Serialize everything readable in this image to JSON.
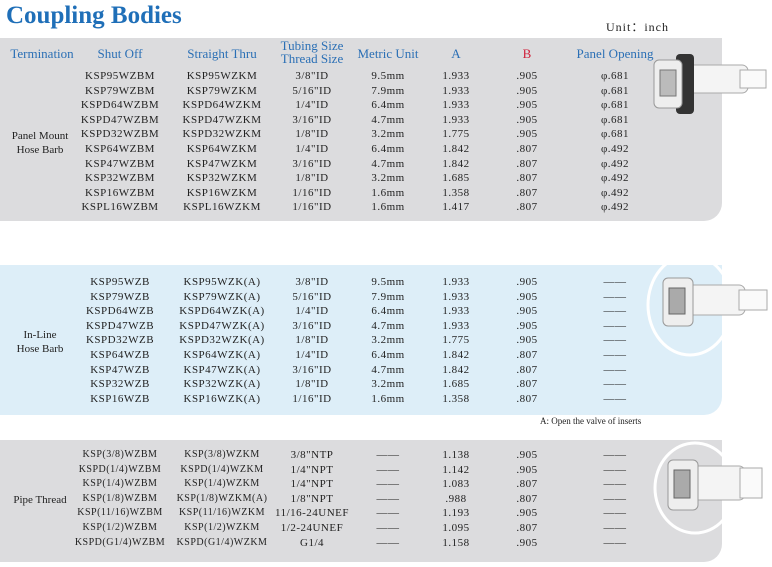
{
  "title": "Coupling Bodies",
  "unit": "Unit：inch",
  "headers": [
    "Termination",
    "Shut Off",
    "Straight Thru",
    [
      "Tubing Size",
      "Thread Size"
    ],
    "Metric Unit",
    "A",
    "B",
    "Panel Opening"
  ],
  "sections": [
    {
      "termination": [
        "Panel Mount",
        "Hose Barb"
      ],
      "rows": [
        [
          "KSP95WZBM",
          "KSP95WZKM",
          "3/8\"ID",
          "9.5mm",
          "1.933",
          ".905",
          "φ.681"
        ],
        [
          "KSP79WZBM",
          "KSP79WZKM",
          "5/16\"ID",
          "7.9mm",
          "1.933",
          ".905",
          "φ.681"
        ],
        [
          "KSPD64WZBM",
          "KSPD64WZKM",
          "1/4\"ID",
          "6.4mm",
          "1.933",
          ".905",
          "φ.681"
        ],
        [
          "KSPD47WZBM",
          "KSPD47WZKM",
          "3/16\"ID",
          "4.7mm",
          "1.933",
          ".905",
          "φ.681"
        ],
        [
          "KSPD32WZBM",
          "KSPD32WZKM",
          "1/8\"ID",
          "3.2mm",
          "1.775",
          ".905",
          "φ.681"
        ],
        [
          "KSP64WZBM",
          "KSP64WZKM",
          "1/4\"ID",
          "6.4mm",
          "1.842",
          ".807",
          "φ.492"
        ],
        [
          "KSP47WZBM",
          "KSP47WZKM",
          "3/16\"ID",
          "4.7mm",
          "1.842",
          ".807",
          "φ.492"
        ],
        [
          "KSP32WZBM",
          "KSP32WZKM",
          "1/8\"ID",
          "3.2mm",
          "1.685",
          ".807",
          "φ.492"
        ],
        [
          "KSP16WZBM",
          "KSP16WZKM",
          "1/16\"ID",
          "1.6mm",
          "1.358",
          ".807",
          "φ.492"
        ],
        [
          "KSPL16WZBM",
          "KSPL16WZKM",
          "1/16\"ID",
          "1.6mm",
          "1.417",
          ".807",
          "φ.492"
        ]
      ]
    },
    {
      "termination": [
        "In-Line",
        "Hose Barb"
      ],
      "rows": [
        [
          "KSP95WZB",
          "KSP95WZK(A)",
          "3/8\"ID",
          "9.5mm",
          "1.933",
          ".905",
          "——"
        ],
        [
          "KSP79WZB",
          "KSP79WZK(A)",
          "5/16\"ID",
          "7.9mm",
          "1.933",
          ".905",
          "——"
        ],
        [
          "KSPD64WZB",
          "KSPD64WZK(A)",
          "1/4\"ID",
          "6.4mm",
          "1.933",
          ".905",
          "——"
        ],
        [
          "KSPD47WZB",
          "KSPD47WZK(A)",
          "3/16\"ID",
          "4.7mm",
          "1.933",
          ".905",
          "——"
        ],
        [
          "KSPD32WZB",
          "KSPD32WZK(A)",
          "1/8\"ID",
          "3.2mm",
          "1.775",
          ".905",
          "——"
        ],
        [
          "KSP64WZB",
          "KSP64WZK(A)",
          "1/4\"ID",
          "6.4mm",
          "1.842",
          ".807",
          "——"
        ],
        [
          "KSP47WZB",
          "KSP47WZK(A)",
          "3/16\"ID",
          "4.7mm",
          "1.842",
          ".807",
          "——"
        ],
        [
          "KSP32WZB",
          "KSP32WZK(A)",
          "1/8\"ID",
          "3.2mm",
          "1.685",
          ".807",
          "——"
        ],
        [
          "KSP16WZB",
          "KSP16WZK(A)",
          "1/16\"ID",
          "1.6mm",
          "1.358",
          ".807",
          "——"
        ]
      ]
    },
    {
      "termination": [
        "Pipe Thread"
      ],
      "rows": [
        [
          "KSP(3/8)WZBM",
          "KSP(3/8)WZKM",
          "3/8\"NTP",
          "——",
          "1.138",
          ".905",
          "——"
        ],
        [
          "KSPD(1/4)WZBM",
          "KSPD(1/4)WZKM",
          "1/4\"NPT",
          "——",
          "1.142",
          ".905",
          "——"
        ],
        [
          "KSP(1/4)WZBM",
          "KSP(1/4)WZKM",
          "1/4\"NPT",
          "——",
          "1.083",
          ".807",
          "——"
        ],
        [
          "KSP(1/8)WZBM",
          "KSP(1/8)WZKM(A)",
          "1/8\"NPT",
          "——",
          ".988",
          ".807",
          "——"
        ],
        [
          "KSP(11/16)WZBM",
          "KSP(11/16)WZKM",
          "11/16-24UNEF",
          "——",
          "1.193",
          ".905",
          "——"
        ],
        [
          "KSP(1/2)WZBM",
          "KSP(1/2)WZKM",
          "1/2-24UNEF",
          "——",
          "1.095",
          ".807",
          "——"
        ],
        [
          "KSPD(G1/4)WZBM",
          "KSPD(G1/4)WZKM",
          "G1/4",
          "——",
          "1.158",
          ".905",
          "——"
        ]
      ]
    }
  ],
  "note": "A: Open the valve of inserts"
}
